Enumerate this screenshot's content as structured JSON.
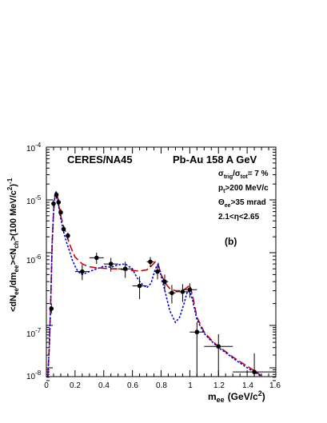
{
  "chart_data": {
    "type": "scatter",
    "title": "",
    "xlabel": {
      "main": "m",
      "sub": "ee",
      "unit": "(GeV/c",
      "unit_sup": "2",
      "unit_close": ")"
    },
    "ylabel": {
      "p1": "<dN",
      "p1_sub": "ee",
      "p2": "/dm",
      "p2_sub": "ee",
      "p3": "><N",
      "p3_sub": "ch",
      "p4": ">(100 MeV/c",
      "p4_sup": "2",
      "p5": ")",
      "p5_sup": "-1"
    },
    "xlim": [
      0,
      1.6
    ],
    "ylim": [
      5e-09,
      0.0001
    ],
    "y_scale": "log",
    "grid": false,
    "x_ticks": [
      "0",
      "0.2",
      "0.4",
      "0.6",
      "0.8",
      "1",
      "1.2",
      "1.4",
      "1.6"
    ],
    "x_tick_values": [
      0,
      0.2,
      0.4,
      0.6,
      0.8,
      1.0,
      1.2,
      1.4,
      1.6
    ],
    "y_ticks": [
      {
        "value": 1e-08,
        "base": "10",
        "exp": "-8"
      },
      {
        "value": 1e-07,
        "base": "10",
        "exp": "-7"
      },
      {
        "value": 1e-06,
        "base": "10",
        "exp": "-6"
      },
      {
        "value": 1e-05,
        "base": "10",
        "exp": "-5"
      },
      {
        "value": 0.0001,
        "base": "10",
        "exp": "-4"
      }
    ],
    "annotations": {
      "experiment": "CERES/NA45",
      "system": "Pb-Au 158 A GeV",
      "centrality": {
        "sigma1": "σ",
        "sub1": "trig",
        "slash": "/",
        "sigma2": "σ",
        "sub2": "tot",
        "rest": "= 7 %"
      },
      "pt_cut": {
        "p": "p",
        "sub": "t",
        "rest": ">200 MeV/c"
      },
      "theta_cut": {
        "theta": "Θ",
        "sub": "ee",
        "rest": ">35 mrad"
      },
      "eta_cut": "2.1<η<2.65",
      "panel": "(b)"
    },
    "series": [
      {
        "style": "points",
        "color": "#000000",
        "points": [
          {
            "x": 0.035,
            "y": 1.7e-07,
            "yerr_lo": 2.5e-08,
            "yerr_hi": 3e-08,
            "xerr": 0.0
          },
          {
            "x": 0.05,
            "y": 8.5e-06,
            "yerr_lo": 1.5e-06,
            "yerr_hi": 1.5e-06,
            "xerr": 0.0
          },
          {
            "x": 0.07,
            "y": 1.25e-05,
            "yerr_lo": 2e-06,
            "yerr_hi": 2e-06,
            "xerr": 0.0
          },
          {
            "x": 0.085,
            "y": 9e-06,
            "yerr_lo": 1.5e-06,
            "yerr_hi": 1.5e-06,
            "xerr": 0.0
          },
          {
            "x": 0.1,
            "y": 5.8e-06,
            "yerr_lo": 1e-06,
            "yerr_hi": 1e-06,
            "xerr": 0.0
          },
          {
            "x": 0.12,
            "y": 2.8e-06,
            "yerr_lo": 4e-07,
            "yerr_hi": 4e-07,
            "xerr": 0.0
          },
          {
            "x": 0.15,
            "y": 2.1e-06,
            "yerr_lo": 3e-07,
            "yerr_hi": 3e-07,
            "xerr": 0.0
          },
          {
            "x": 0.25,
            "y": 5.5e-07,
            "yerr_lo": 1.3e-07,
            "yerr_hi": 1.3e-07,
            "xerr": 0.05
          },
          {
            "x": 0.35,
            "y": 8.5e-07,
            "yerr_lo": 1.5e-07,
            "yerr_hi": 1.5e-07,
            "xerr": 0.05
          },
          {
            "x": 0.45,
            "y": 7e-07,
            "yerr_lo": 1.5e-07,
            "yerr_hi": 1.5e-07,
            "xerr": 0.05
          },
          {
            "x": 0.55,
            "y": 6e-07,
            "yerr_lo": 1.5e-07,
            "yerr_hi": 1.5e-07,
            "xerr": 0.05
          },
          {
            "x": 0.65,
            "y": 3.5e-07,
            "yerr_lo": 1.2e-07,
            "yerr_hi": 1.2e-07,
            "xerr": 0.05
          },
          {
            "x": 0.725,
            "y": 7.5e-07,
            "yerr_lo": 1.2e-07,
            "yerr_hi": 1.2e-07,
            "xerr": 0.025
          },
          {
            "x": 0.775,
            "y": 5.5e-07,
            "yerr_lo": 1.2e-07,
            "yerr_hi": 1.2e-07,
            "xerr": 0.025
          },
          {
            "x": 0.825,
            "y": 4e-07,
            "yerr_lo": 1e-07,
            "yerr_hi": 1e-07,
            "xerr": 0.025
          },
          {
            "x": 0.875,
            "y": 2.8e-07,
            "yerr_lo": 8e-08,
            "yerr_hi": 8e-08,
            "xerr": 0.025
          },
          {
            "x": 0.95,
            "y": 2.9e-07,
            "yerr_lo": 8e-08,
            "yerr_hi": 8e-08,
            "xerr": 0.05
          },
          {
            "x": 1.0,
            "y": 3.1e-07,
            "yerr_lo": 7e-08,
            "yerr_hi": 7e-08,
            "xerr": 0.05
          },
          {
            "x": 1.05,
            "y": 7e-08,
            "yerr_lo": 6.9e-08,
            "yerr_hi": 4e-08,
            "xerr": 0.05
          },
          {
            "x": 1.2,
            "y": 3.2e-08,
            "yerr_lo": 3.19e-08,
            "yerr_hi": 3e-08,
            "xerr": 0.1
          },
          {
            "x": 1.45,
            "y": 8e-09,
            "yerr_lo": 3e-09,
            "yerr_hi": 1.4e-08,
            "xerr": 0.15
          }
        ]
      },
      {
        "style": "line",
        "color": "#cc0000",
        "dash": "long",
        "x": [
          0.01,
          0.02,
          0.03,
          0.04,
          0.05,
          0.06,
          0.07,
          0.08,
          0.09,
          0.1,
          0.12,
          0.14,
          0.16,
          0.18,
          0.2,
          0.25,
          0.3,
          0.35,
          0.4,
          0.45,
          0.5,
          0.55,
          0.6,
          0.65,
          0.7,
          0.73,
          0.76,
          0.78,
          0.8,
          0.83,
          0.86,
          0.9,
          0.95,
          0.98,
          1.0,
          1.02,
          1.05,
          1.1,
          1.15,
          1.2,
          1.25,
          1.3,
          1.35,
          1.4,
          1.45,
          1.5
        ],
        "y": [
          6e-09,
          3e-08,
          2e-07,
          1.5e-06,
          6e-06,
          1.2e-05,
          1.4e-05,
          1.05e-05,
          7e-06,
          5e-06,
          3.2e-06,
          2.2e-06,
          1.5e-06,
          1.1e-06,
          8.7e-07,
          7e-07,
          6.4e-07,
          6.2e-07,
          6.1e-07,
          6e-07,
          6e-07,
          5.8e-07,
          5.7e-07,
          5.6e-07,
          5.8e-07,
          6.5e-07,
          7.5e-07,
          6.8e-07,
          5e-07,
          3.8e-07,
          3.2e-07,
          3e-07,
          3e-07,
          3.3e-07,
          3.6e-07,
          2.5e-07,
          1.3e-07,
          7e-08,
          4.5e-08,
          3.2e-08,
          2.4e-08,
          1.8e-08,
          1.4e-08,
          1.1e-08,
          8.5e-09,
          6.5e-09
        ]
      },
      {
        "style": "line",
        "color": "#0000dd",
        "dash": "dot",
        "x": [
          0.01,
          0.02,
          0.03,
          0.04,
          0.05,
          0.06,
          0.07,
          0.08,
          0.09,
          0.1,
          0.12,
          0.14,
          0.16,
          0.18,
          0.2,
          0.22,
          0.25,
          0.3,
          0.35,
          0.4,
          0.45,
          0.5,
          0.55,
          0.6,
          0.63,
          0.66,
          0.7,
          0.73,
          0.76,
          0.78,
          0.8,
          0.83,
          0.86,
          0.9,
          0.93,
          0.96,
          0.98,
          1.0,
          1.02,
          1.05,
          1.1,
          1.15,
          1.2,
          1.25,
          1.3,
          1.35,
          1.4,
          1.45,
          1.5
        ],
        "y": [
          6e-09,
          3e-08,
          2e-07,
          1.4e-06,
          6e-06,
          1.3e-05,
          1.45e-05,
          1e-05,
          6.5e-06,
          4.5e-06,
          2.5e-06,
          1.6e-06,
          1.1e-06,
          8e-07,
          6.5e-07,
          5.5e-07,
          5e-07,
          5.5e-07,
          6e-07,
          6.5e-07,
          6.3e-07,
          6.8e-07,
          7e-07,
          6e-07,
          4.6e-07,
          3.8e-07,
          3.3e-07,
          3.8e-07,
          6e-07,
          7e-07,
          4.8e-07,
          2.8e-07,
          1.6e-07,
          1.1e-07,
          1.3e-07,
          2e-07,
          2.8e-07,
          3e-07,
          2.2e-07,
          1.2e-07,
          6.5e-08,
          4.3e-08,
          3e-08,
          2.3e-08,
          1.7e-08,
          1.3e-08,
          1e-08,
          8e-09,
          6e-09
        ]
      }
    ]
  }
}
